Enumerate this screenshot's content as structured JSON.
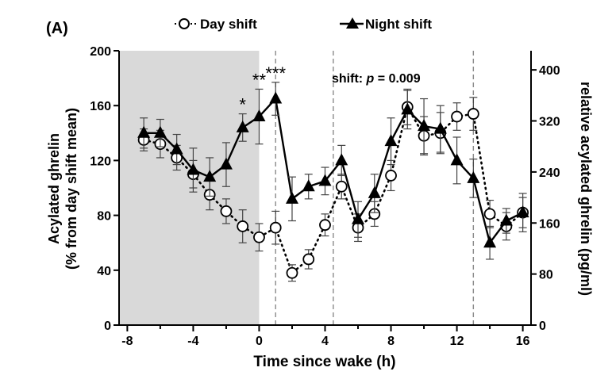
{
  "chart_data": {
    "type": "line",
    "panel_label": "(A)",
    "xlabel": "Time since wake (h)",
    "ylabel_line1": "Acylated ghrelin",
    "ylabel_line2": "(% from day shift mean)",
    "ylabel_right": "relative acylated ghrelin (pg/ml)",
    "xlim": [
      -8.5,
      16.5
    ],
    "ylim": [
      0,
      200
    ],
    "right_ylim": [
      0,
      430
    ],
    "xticks": [
      -8,
      -4,
      0,
      4,
      8,
      12,
      16
    ],
    "yticks": [
      0,
      40,
      80,
      120,
      160,
      200
    ],
    "right_yticks": [
      0,
      80,
      160,
      240,
      320,
      400
    ],
    "shaded_region": {
      "x_start": -8.5,
      "x_end": 0,
      "color": "#d9d9d9"
    },
    "vertical_dashed_lines": [
      1,
      4.5,
      13
    ],
    "annotation": {
      "prefix": "shift: ",
      "italic": "p",
      "suffix": " = 0.009"
    },
    "significance": [
      {
        "x": -1,
        "label": "*"
      },
      {
        "x": 0,
        "label": "**"
      },
      {
        "x": 1,
        "label": "***"
      }
    ],
    "legend_position": "top-center",
    "series": [
      {
        "name": "Day shift",
        "marker": "open-circle",
        "linestyle": "dotted",
        "x": [
          -7,
          -6,
          -5,
          -4,
          -3,
          -2,
          -1,
          0,
          1,
          2,
          3,
          4,
          5,
          6,
          7,
          8,
          9,
          10,
          11,
          12,
          13,
          14,
          15,
          16
        ],
        "y": [
          135,
          132,
          122,
          110,
          95,
          83,
          72,
          64,
          71,
          38,
          48,
          73,
          101,
          71,
          81,
          109,
          159,
          138,
          140,
          152,
          154,
          81,
          72,
          82
        ],
        "err": [
          8,
          10,
          9,
          10,
          11,
          9,
          12,
          10,
          12,
          6,
          7,
          8,
          9,
          10,
          9,
          11,
          13,
          14,
          15,
          10,
          12,
          10,
          10,
          11
        ]
      },
      {
        "name": "Night shift",
        "marker": "filled-triangle",
        "linestyle": "solid",
        "x": [
          -7,
          -6,
          -5,
          -4,
          -3,
          -2,
          -1,
          0,
          1,
          2,
          3,
          4,
          5,
          6,
          7,
          8,
          9,
          10,
          11,
          12,
          13,
          14,
          15,
          16
        ],
        "y": [
          140,
          140,
          128,
          113,
          108,
          117,
          144,
          152,
          165,
          92,
          101,
          105,
          120,
          77,
          96,
          134,
          157,
          145,
          143,
          120,
          107,
          60,
          76,
          82
        ],
        "err": [
          11,
          10,
          11,
          16,
          14,
          16,
          10,
          20,
          12,
          16,
          9,
          10,
          11,
          13,
          14,
          17,
          14,
          20,
          17,
          17,
          14,
          12,
          9,
          14
        ]
      }
    ]
  }
}
